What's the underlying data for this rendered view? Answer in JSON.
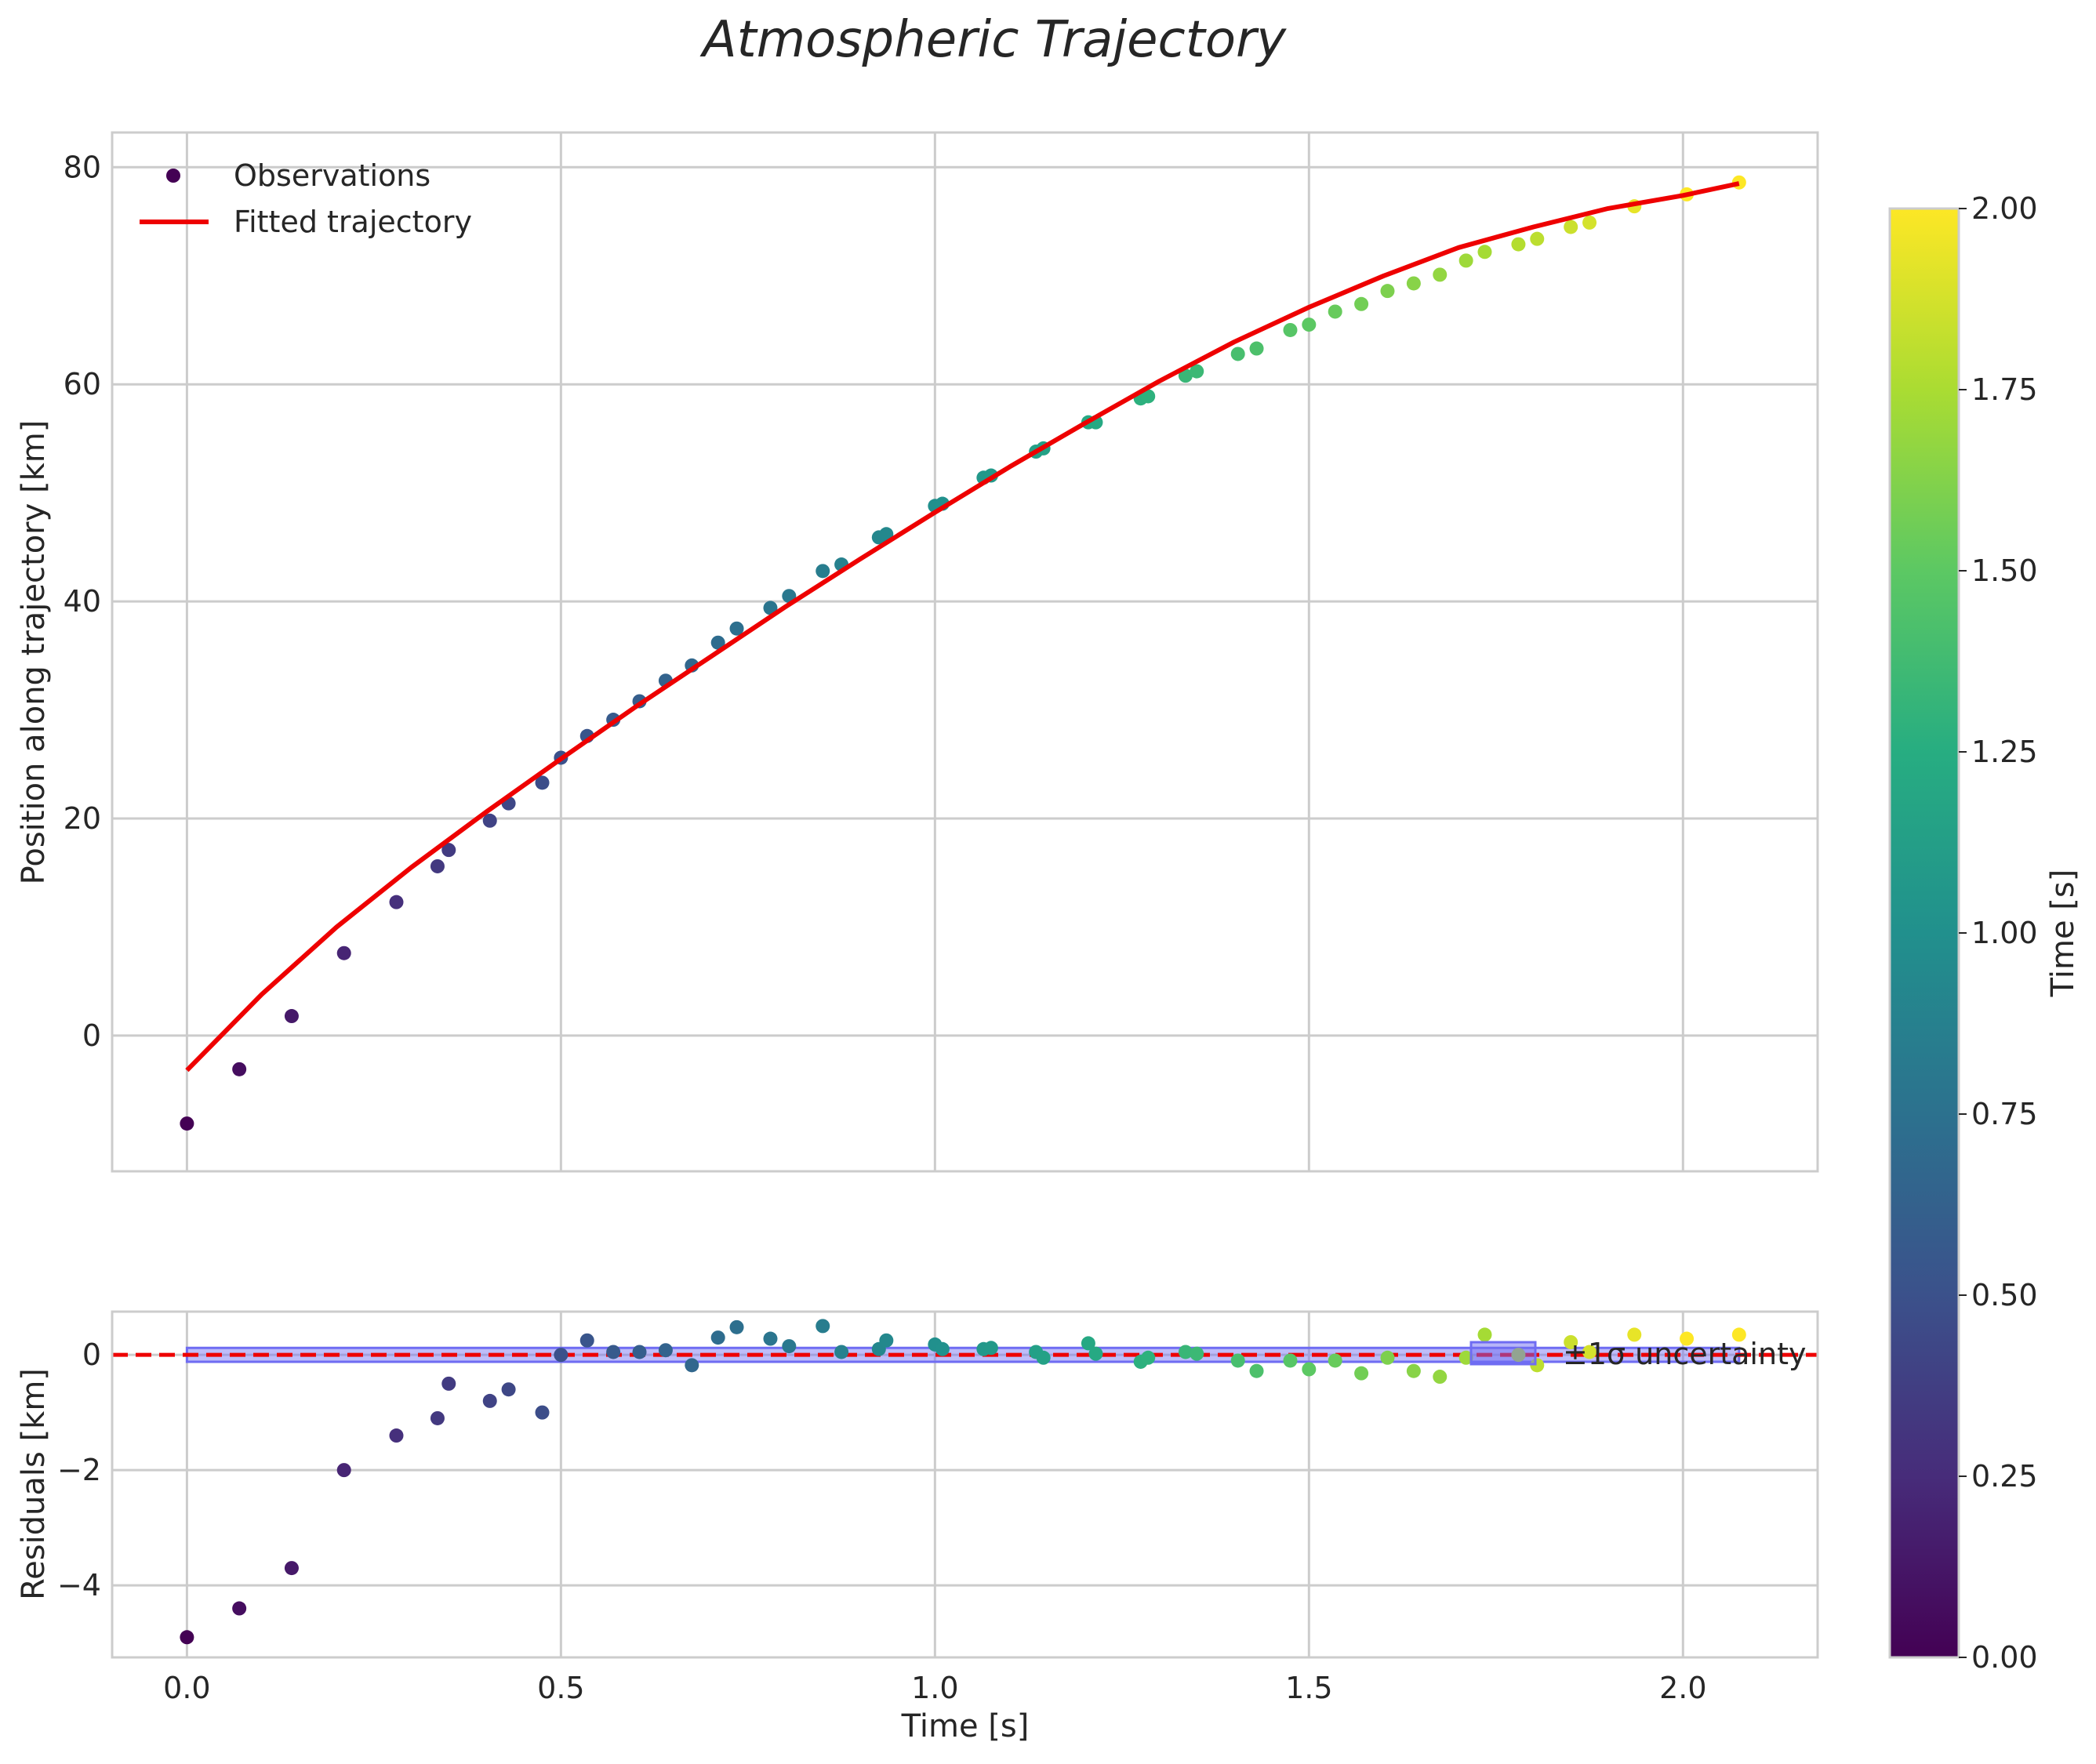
{
  "title": "Atmospheric Trajectory",
  "chart_data": [
    {
      "type": "scatter",
      "panel": "top",
      "xlabel": "",
      "ylabel": "Position along trajectory [km]",
      "xlim": [
        -0.1,
        2.18
      ],
      "ylim": [
        -12.5,
        83.2
      ],
      "xticks": [
        0.0,
        0.5,
        1.0,
        1.5,
        2.0
      ],
      "xtick_labels": [
        "",
        "",
        "",
        "",
        ""
      ],
      "yticks": [
        0,
        20,
        40,
        60,
        80
      ],
      "ytick_labels": [
        "0",
        "20",
        "40",
        "60",
        "80"
      ],
      "grid": true,
      "legend": {
        "placement": "top-left",
        "entries": [
          "Observations",
          "Fitted trajectory"
        ]
      },
      "series": [
        {
          "name": "Observations",
          "kind": "scatter",
          "colored_by": "time",
          "points": [
            [
              0.0,
              -8.1
            ],
            [
              0.07,
              -3.1
            ],
            [
              0.14,
              1.8
            ],
            [
              0.21,
              7.6
            ],
            [
              0.28,
              12.3
            ],
            [
              0.335,
              15.6
            ],
            [
              0.35,
              17.1
            ],
            [
              0.405,
              19.8
            ],
            [
              0.43,
              21.4
            ],
            [
              0.475,
              23.3
            ],
            [
              0.5,
              25.6
            ],
            [
              0.535,
              27.6
            ],
            [
              0.57,
              29.1
            ],
            [
              0.605,
              30.8
            ],
            [
              0.64,
              32.7
            ],
            [
              0.675,
              34.1
            ],
            [
              0.71,
              36.2
            ],
            [
              0.735,
              37.5
            ],
            [
              0.78,
              39.4
            ],
            [
              0.805,
              40.5
            ],
            [
              0.85,
              42.8
            ],
            [
              0.875,
              43.4
            ],
            [
              0.925,
              45.9
            ],
            [
              0.935,
              46.2
            ],
            [
              1.0,
              48.8
            ],
            [
              1.01,
              49.0
            ],
            [
              1.065,
              51.4
            ],
            [
              1.075,
              51.6
            ],
            [
              1.135,
              53.8
            ],
            [
              1.145,
              54.1
            ],
            [
              1.205,
              56.5
            ],
            [
              1.215,
              56.5
            ],
            [
              1.275,
              58.7
            ],
            [
              1.285,
              58.9
            ],
            [
              1.335,
              60.8
            ],
            [
              1.35,
              61.2
            ],
            [
              1.405,
              62.8
            ],
            [
              1.43,
              63.3
            ],
            [
              1.475,
              65.0
            ],
            [
              1.5,
              65.5
            ],
            [
              1.535,
              66.7
            ],
            [
              1.57,
              67.4
            ],
            [
              1.605,
              68.6
            ],
            [
              1.64,
              69.3
            ],
            [
              1.675,
              70.1
            ],
            [
              1.71,
              71.4
            ],
            [
              1.735,
              72.2
            ],
            [
              1.78,
              72.9
            ],
            [
              1.805,
              73.4
            ],
            [
              1.85,
              74.5
            ],
            [
              1.875,
              74.9
            ],
            [
              1.935,
              76.4
            ],
            [
              2.005,
              77.5
            ],
            [
              2.075,
              78.6
            ]
          ]
        },
        {
          "name": "Fitted trajectory",
          "kind": "line",
          "color": "#ee0000",
          "x": [
            0.0,
            0.1,
            0.2,
            0.3,
            0.4,
            0.5,
            0.6,
            0.7,
            0.8,
            0.9,
            1.0,
            1.1,
            1.2,
            1.3,
            1.4,
            1.5,
            1.6,
            1.7,
            1.8,
            1.9,
            2.0,
            2.075
          ],
          "y": [
            -3.2,
            3.8,
            10.0,
            15.5,
            20.6,
            25.5,
            30.3,
            34.9,
            39.5,
            43.9,
            48.2,
            52.4,
            56.4,
            60.3,
            63.9,
            67.1,
            70.0,
            72.6,
            74.5,
            76.2,
            77.4,
            78.5
          ]
        }
      ]
    },
    {
      "type": "scatter",
      "panel": "bottom",
      "xlabel": "Time [s]",
      "ylabel": "Residuals [km]",
      "xlim": [
        -0.1,
        2.18
      ],
      "ylim": [
        -5.25,
        0.75
      ],
      "xticks": [
        0.0,
        0.5,
        1.0,
        1.5,
        2.0
      ],
      "xtick_labels": [
        "0.0",
        "0.5",
        "1.0",
        "1.5",
        "2.0"
      ],
      "yticks": [
        -4,
        -2,
        0
      ],
      "ytick_labels": [
        "−4",
        "−2",
        "0"
      ],
      "grid": true,
      "zero_line": {
        "y": 0,
        "color": "#ee0000",
        "style": "dashed"
      },
      "uncertainty_band": {
        "label": "±1σ uncertainty",
        "color": "#6f6cf2",
        "half_width": 0.12
      },
      "legend": {
        "placement": "right",
        "entries": [
          "±1σ uncertainty"
        ]
      },
      "series": [
        {
          "name": "Residuals",
          "kind": "scatter",
          "colored_by": "time",
          "points": [
            [
              0.0,
              -4.9
            ],
            [
              0.07,
              -4.4
            ],
            [
              0.14,
              -3.7
            ],
            [
              0.21,
              -2.0
            ],
            [
              0.28,
              -1.4
            ],
            [
              0.335,
              -1.1
            ],
            [
              0.35,
              -0.5
            ],
            [
              0.405,
              -0.8
            ],
            [
              0.43,
              -0.6
            ],
            [
              0.475,
              -1.0
            ],
            [
              0.5,
              0.0
            ],
            [
              0.535,
              0.25
            ],
            [
              0.57,
              0.05
            ],
            [
              0.605,
              0.05
            ],
            [
              0.64,
              0.08
            ],
            [
              0.675,
              -0.18
            ],
            [
              0.71,
              0.3
            ],
            [
              0.735,
              0.48
            ],
            [
              0.78,
              0.28
            ],
            [
              0.805,
              0.15
            ],
            [
              0.85,
              0.5
            ],
            [
              0.875,
              0.05
            ],
            [
              0.925,
              0.1
            ],
            [
              0.935,
              0.25
            ],
            [
              1.0,
              0.18
            ],
            [
              1.01,
              0.1
            ],
            [
              1.065,
              0.1
            ],
            [
              1.075,
              0.12
            ],
            [
              1.135,
              0.05
            ],
            [
              1.145,
              -0.05
            ],
            [
              1.205,
              0.2
            ],
            [
              1.215,
              0.02
            ],
            [
              1.275,
              -0.12
            ],
            [
              1.285,
              -0.05
            ],
            [
              1.335,
              0.05
            ],
            [
              1.35,
              0.02
            ],
            [
              1.405,
              -0.1
            ],
            [
              1.43,
              -0.28
            ],
            [
              1.475,
              -0.1
            ],
            [
              1.5,
              -0.25
            ],
            [
              1.535,
              -0.1
            ],
            [
              1.57,
              -0.32
            ],
            [
              1.605,
              -0.05
            ],
            [
              1.64,
              -0.28
            ],
            [
              1.675,
              -0.38
            ],
            [
              1.71,
              -0.05
            ],
            [
              1.735,
              0.35
            ],
            [
              1.78,
              0.0
            ],
            [
              1.805,
              -0.18
            ],
            [
              1.85,
              0.22
            ],
            [
              1.875,
              0.05
            ],
            [
              1.935,
              0.35
            ],
            [
              2.005,
              0.28
            ],
            [
              2.075,
              0.35
            ]
          ]
        }
      ]
    },
    {
      "type": "colorbar",
      "label": "Time [s]",
      "colormap": "viridis",
      "range": [
        0.0,
        2.0
      ],
      "ticks": [
        0.0,
        0.25,
        0.5,
        0.75,
        1.0,
        1.25,
        1.5,
        1.75,
        2.0
      ],
      "tick_labels": [
        "0.00",
        "0.25",
        "0.50",
        "0.75",
        "1.00",
        "1.25",
        "1.50",
        "1.75",
        "2.00"
      ]
    }
  ]
}
